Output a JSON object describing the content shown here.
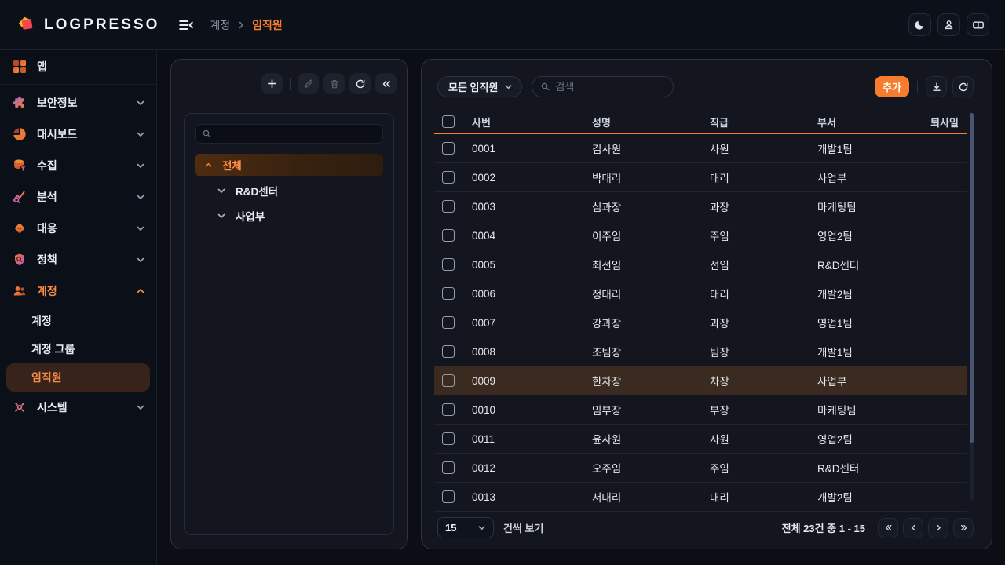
{
  "topbar": {
    "brand": "LOGPRESSO",
    "breadcrumb": {
      "parent": "계정",
      "current": "임직원"
    }
  },
  "sidebar": {
    "app_label": "앱",
    "groups": [
      {
        "label": "보안정보",
        "expanded": false
      },
      {
        "label": "대시보드",
        "expanded": false
      },
      {
        "label": "수집",
        "expanded": false
      },
      {
        "label": "분석",
        "expanded": false
      },
      {
        "label": "대응",
        "expanded": false
      },
      {
        "label": "정책",
        "expanded": false
      },
      {
        "label": "계정",
        "expanded": true,
        "active": true,
        "children": [
          {
            "label": "계정",
            "selected": false
          },
          {
            "label": "계정 그룹",
            "selected": false
          },
          {
            "label": "임직원",
            "selected": true
          }
        ]
      },
      {
        "label": "시스템",
        "expanded": false
      }
    ]
  },
  "tree_panel": {
    "search_value": "",
    "root": {
      "label": "전체",
      "selected": true
    },
    "children": [
      {
        "label": "R&D센터"
      },
      {
        "label": "사업부"
      }
    ]
  },
  "employee_panel": {
    "filter": {
      "selected": "모든 임직원"
    },
    "search_placeholder": "검색",
    "add_button": "추가",
    "columns": [
      "사번",
      "성명",
      "직급",
      "부서",
      "퇴사일"
    ],
    "rows": [
      {
        "id": "0001",
        "name": "김사원",
        "rank": "사원",
        "dept": "개발1팀",
        "leave": "",
        "highlighted": false
      },
      {
        "id": "0002",
        "name": "박대리",
        "rank": "대리",
        "dept": "사업부",
        "leave": "",
        "highlighted": false
      },
      {
        "id": "0003",
        "name": "심과장",
        "rank": "과장",
        "dept": "마케팅팀",
        "leave": "",
        "highlighted": false
      },
      {
        "id": "0004",
        "name": "이주임",
        "rank": "주임",
        "dept": "영업2팀",
        "leave": "",
        "highlighted": false
      },
      {
        "id": "0005",
        "name": "최선임",
        "rank": "선임",
        "dept": "R&D센터",
        "leave": "",
        "highlighted": false
      },
      {
        "id": "0006",
        "name": "정대리",
        "rank": "대리",
        "dept": "개발2팀",
        "leave": "",
        "highlighted": false
      },
      {
        "id": "0007",
        "name": "강과장",
        "rank": "과장",
        "dept": "영업1팀",
        "leave": "",
        "highlighted": false
      },
      {
        "id": "0008",
        "name": "조팀장",
        "rank": "팀장",
        "dept": "개발1팀",
        "leave": "",
        "highlighted": false
      },
      {
        "id": "0009",
        "name": "한차장",
        "rank": "차장",
        "dept": "사업부",
        "leave": "",
        "highlighted": true
      },
      {
        "id": "0010",
        "name": "임부장",
        "rank": "부장",
        "dept": "마케팅팀",
        "leave": "",
        "highlighted": false
      },
      {
        "id": "0011",
        "name": "윤사원",
        "rank": "사원",
        "dept": "영업2팀",
        "leave": "",
        "highlighted": false
      },
      {
        "id": "0012",
        "name": "오주임",
        "rank": "주임",
        "dept": "R&D센터",
        "leave": "",
        "highlighted": false
      },
      {
        "id": "0013",
        "name": "서대리",
        "rank": "대리",
        "dept": "개발2팀",
        "leave": "",
        "highlighted": false
      }
    ],
    "pagination": {
      "page_size": "15",
      "page_size_suffix": "건씩 보기",
      "summary": "전체 23건 중 1 - 15"
    }
  },
  "colors": {
    "accent": "#f97b2c",
    "add_button_bg": "#f87c2e",
    "highlight_row_bg": "#3b2a20",
    "selected_nav_bg": "#38231a",
    "scrollbar_thumb": "#4a5571",
    "card_bg": "#13161f",
    "page_bg": "#0b0e14"
  }
}
